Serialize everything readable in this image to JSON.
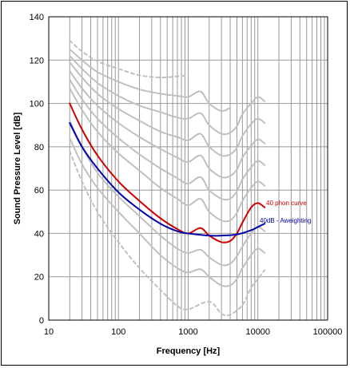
{
  "chart_data": {
    "type": "line",
    "xlabel": "Frequency [Hz]",
    "ylabel": "Sound Pressure Level [dB]",
    "xscale": "log",
    "xlim": [
      10,
      100000
    ],
    "ylim": [
      0,
      140
    ],
    "x_ticks": [
      "10",
      "100",
      "1000",
      "10000",
      "100000"
    ],
    "y_ticks": [
      "0",
      "20",
      "40",
      "60",
      "80",
      "100",
      "120",
      "140"
    ],
    "grid": true,
    "colors": {
      "grid": "#999999",
      "gray_curves": "#c0c0c0",
      "phon40": "#cc0000",
      "aweight": "#0000aa"
    },
    "series": [
      {
        "name": "40 phon curve",
        "color": "#cc0000",
        "x": [
          20,
          30,
          50,
          100,
          200,
          400,
          700,
          1000,
          1500,
          2000,
          3000,
          4000,
          5000,
          6000,
          8000,
          10000,
          12500
        ],
        "y": [
          100,
          88,
          76,
          64,
          55,
          47,
          42,
          40,
          42.5,
          39,
          36,
          36.5,
          40,
          45,
          52,
          54,
          52
        ]
      },
      {
        "name": "40dB - Aweighting",
        "color": "#0000aa",
        "x": [
          20,
          30,
          50,
          100,
          200,
          400,
          700,
          1000,
          2000,
          3000,
          5000,
          8000,
          10000,
          12500
        ],
        "y": [
          91,
          80,
          70,
          59,
          51,
          44.5,
          41,
          40,
          39,
          39,
          39.5,
          41.5,
          43,
          44.5
        ]
      },
      {
        "name": "",
        "style": "dashed",
        "x": [
          20,
          30,
          50,
          100,
          200,
          400,
          700,
          1000,
          2000,
          3000,
          4000,
          6000,
          8000,
          10000,
          12500
        ],
        "y": [
          78,
          64,
          50,
          36,
          24,
          14,
          6.5,
          5,
          8.5,
          3,
          2.5,
          7,
          15,
          19,
          23
        ]
      },
      {
        "name": "",
        "x": [
          20,
          30,
          50,
          100,
          200,
          400,
          700,
          1000,
          1500,
          2000,
          3000,
          4000,
          5000,
          6000,
          8000,
          10000,
          12500
        ],
        "y": [
          84,
          72,
          61,
          50,
          40,
          30,
          24,
          22,
          23.5,
          20,
          16,
          16,
          19,
          24,
          30,
          33,
          31
        ]
      },
      {
        "name": "",
        "x": [
          20,
          30,
          50,
          100,
          200,
          400,
          700,
          1000,
          1500,
          2000,
          3000,
          4000,
          5000,
          6000,
          8000,
          10000,
          12500
        ],
        "y": [
          92,
          80,
          68,
          57,
          48,
          39,
          33,
          31,
          32.5,
          29,
          25.5,
          26,
          29.5,
          34,
          40,
          43,
          41
        ]
      },
      {
        "name": "",
        "x": [
          20,
          30,
          50,
          100,
          200,
          400,
          700,
          1000,
          1500,
          2000,
          3000,
          4000,
          5000,
          6000,
          8000,
          10000,
          12500
        ],
        "y": [
          107,
          97,
          87,
          77,
          69,
          61,
          56,
          53,
          56,
          50,
          46,
          46,
          49.5,
          55,
          61,
          64,
          62
        ]
      },
      {
        "name": "",
        "x": [
          20,
          30,
          50,
          100,
          200,
          400,
          700,
          1000,
          1500,
          2000,
          3000,
          4000,
          5000,
          6000,
          8000,
          10000,
          12500
        ],
        "y": [
          111,
          102,
          93,
          84,
          76.5,
          70,
          65.5,
          63,
          66,
          60,
          56,
          56,
          59.5,
          65,
          70.5,
          73.5,
          71.5
        ]
      },
      {
        "name": "",
        "x": [
          20,
          30,
          50,
          100,
          200,
          400,
          700,
          1000,
          1500,
          2000,
          3000,
          4000,
          5000,
          6000,
          8000,
          10000,
          12500
        ],
        "y": [
          115,
          107,
          99,
          91,
          84.5,
          79,
          75,
          73,
          76,
          70,
          66,
          66.5,
          69.5,
          75,
          80.5,
          83.5,
          81.5
        ]
      },
      {
        "name": "",
        "x": [
          20,
          30,
          50,
          100,
          200,
          400,
          700,
          1000,
          1500,
          2000,
          3000,
          4000,
          5000,
          6000,
          8000,
          10000,
          12500
        ],
        "y": [
          119,
          112,
          104.5,
          97.5,
          92,
          87,
          84.5,
          83,
          86,
          80,
          76,
          76.5,
          79.5,
          85,
          90.5,
          93,
          91
        ]
      },
      {
        "name": "",
        "x": [
          20,
          30,
          50,
          100,
          200,
          400,
          700,
          1000,
          1500,
          2000,
          3000,
          4000,
          5000,
          6000,
          8000,
          10000,
          12500
        ],
        "y": [
          122,
          116,
          109.5,
          103.5,
          99,
          96,
          93.5,
          93,
          95.5,
          90,
          86,
          86.5,
          89.5,
          95,
          100,
          103,
          101
        ]
      },
      {
        "name": "",
        "x": [
          20,
          30,
          50,
          100,
          200,
          400,
          700,
          1000,
          1500,
          2000,
          3000,
          4000
        ],
        "y": [
          125,
          120,
          114.5,
          110,
          106.5,
          104.5,
          103.5,
          103,
          105.5,
          100,
          96.5,
          98
        ]
      },
      {
        "name": "",
        "style": "dashed",
        "x": [
          20,
          30,
          50,
          100,
          200,
          400,
          700,
          1000
        ],
        "y": [
          129,
          124,
          119.5,
          116,
          113,
          112,
          112.5,
          113
        ]
      }
    ]
  }
}
